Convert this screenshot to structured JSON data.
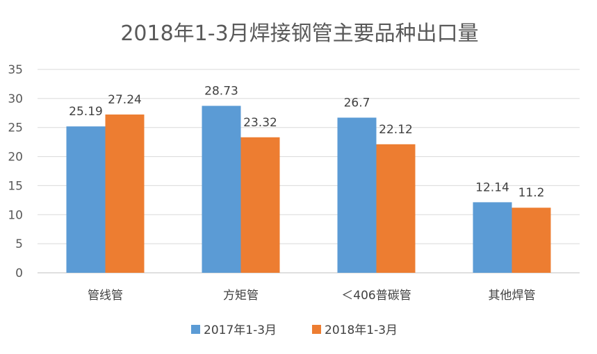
{
  "chart_data": {
    "type": "bar",
    "title": "2018年1-3月焊接钢管主要品种出口量",
    "categories": [
      "管线管",
      "方矩管",
      "＜406普碳管",
      "其他焊管"
    ],
    "series": [
      {
        "name": "2017年1-3月",
        "values": [
          25.19,
          28.73,
          26.7,
          12.14
        ],
        "labels": [
          "25.19",
          "28.73",
          "26.7",
          "12.14"
        ],
        "color": "#5b9bd5"
      },
      {
        "name": "2018年1-3月",
        "values": [
          27.24,
          23.32,
          22.12,
          11.2
        ],
        "labels": [
          "27.24",
          "23.32",
          "22.12",
          "11.2"
        ],
        "color": "#ed7d31"
      }
    ],
    "ylim": [
      0,
      35
    ],
    "yticks": [
      "0",
      "5",
      "10",
      "15",
      "20",
      "25",
      "30",
      "35"
    ],
    "grid": true,
    "legend_position": "bottom"
  }
}
